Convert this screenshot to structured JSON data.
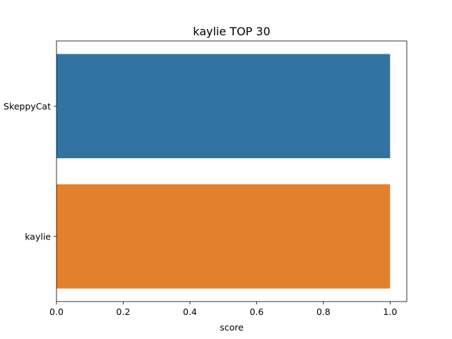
{
  "chart_data": {
    "type": "bar",
    "orientation": "horizontal",
    "title": "kaylie TOP 30",
    "xlabel": "score",
    "ylabel": "",
    "categories": [
      "SkeppyCat",
      "kaylie"
    ],
    "values": [
      1.0,
      1.0
    ],
    "colors": [
      "#3274a1",
      "#e1812c"
    ],
    "xlim": [
      0.0,
      1.05
    ],
    "xticks": [
      0.0,
      0.2,
      0.4,
      0.6,
      0.8,
      1.0
    ],
    "xtick_labels": [
      "0.0",
      "0.2",
      "0.4",
      "0.6",
      "0.8",
      "1.0"
    ],
    "grid": false,
    "legend": "none"
  }
}
